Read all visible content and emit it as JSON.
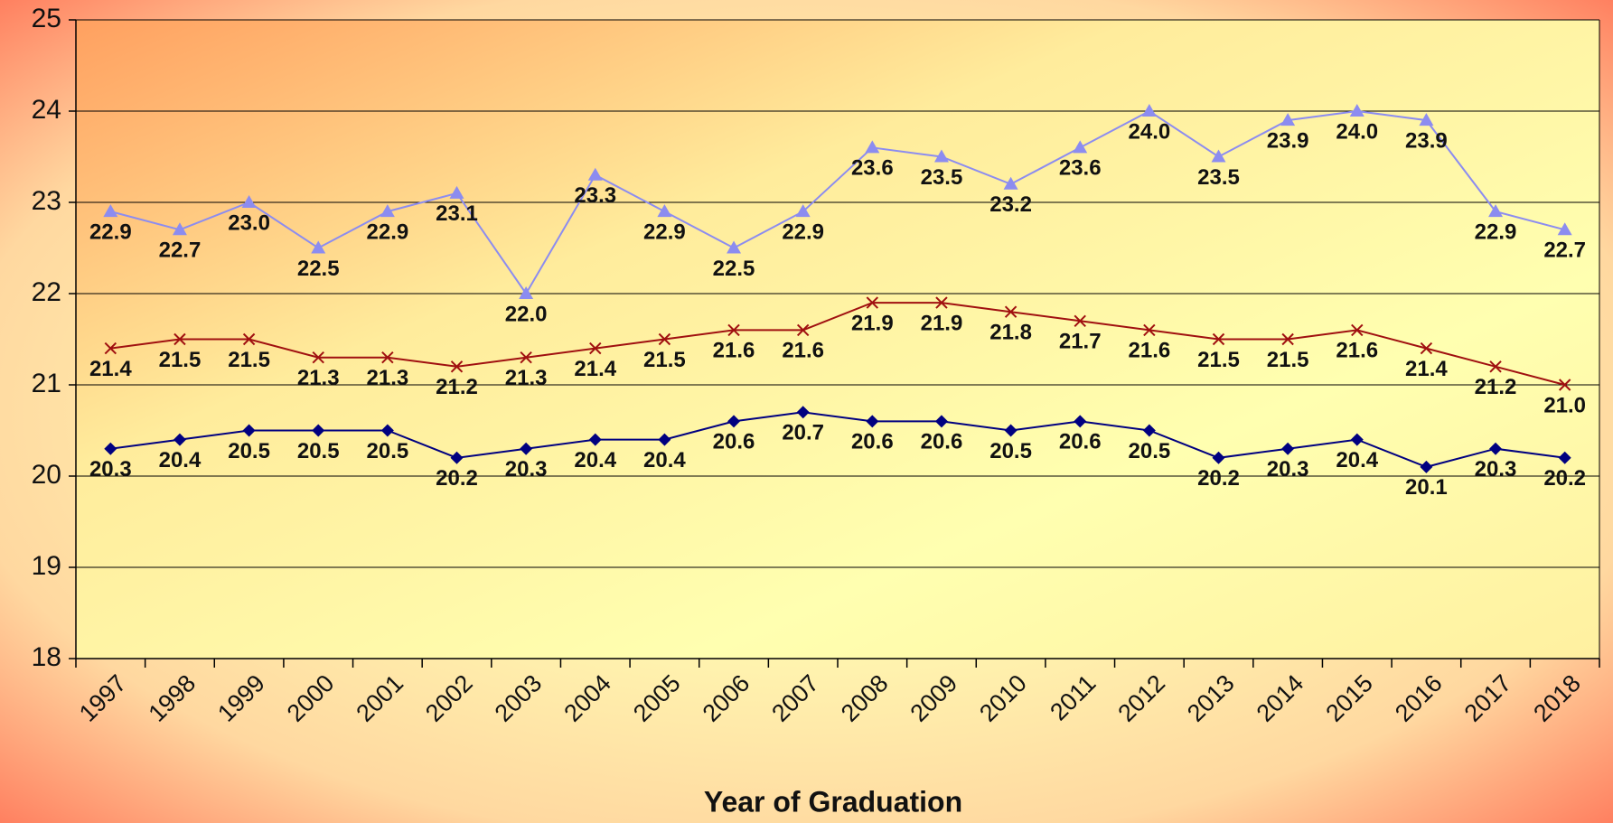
{
  "chart_data": {
    "type": "line",
    "x_label": "Year of Graduation",
    "categories": [
      "1997",
      "1998",
      "1999",
      "2000",
      "2001",
      "2002",
      "2003",
      "2004",
      "2005",
      "2006",
      "2007",
      "2008",
      "2009",
      "2010",
      "2011",
      "2012",
      "2013",
      "2014",
      "2015",
      "2016",
      "2017",
      "2018"
    ],
    "series": [
      {
        "color": "#8c8cf0",
        "marker": "triangle",
        "values": [
          22.9,
          22.7,
          23.0,
          22.5,
          22.9,
          23.1,
          22.0,
          23.3,
          22.9,
          22.5,
          22.9,
          23.6,
          23.5,
          23.2,
          23.6,
          24.0,
          23.5,
          23.9,
          24.0,
          23.9,
          22.9,
          22.7
        ],
        "value_labels": [
          "22.9",
          "22.7",
          "23.0",
          "22.5",
          "22.9",
          "23.1",
          "22.0",
          "23.3",
          "22.9",
          "22.5",
          "22.9",
          "23.6",
          "23.5",
          "23.2",
          "23.6",
          "24.0",
          "23.5",
          "23.9",
          "24.0",
          "23.9",
          "22.9",
          "22.7"
        ]
      },
      {
        "color": "#a01010",
        "marker": "x",
        "values": [
          21.4,
          21.5,
          21.5,
          21.3,
          21.3,
          21.2,
          21.3,
          21.4,
          21.5,
          21.6,
          21.6,
          21.9,
          21.9,
          21.8,
          21.7,
          21.6,
          21.5,
          21.5,
          21.6,
          21.4,
          21.2,
          21.0
        ],
        "value_labels": [
          "21.4",
          "21.5",
          "21.5",
          "21.3",
          "21.3",
          "21.2",
          "21.3",
          "21.4",
          "21.5",
          "21.6",
          "21.6",
          "21.9",
          "21.9",
          "21.8",
          "21.7",
          "21.6",
          "21.5",
          "21.5",
          "21.6",
          "21.4",
          "21.2",
          "21.0"
        ]
      },
      {
        "color": "#000080",
        "marker": "diamond",
        "values": [
          20.3,
          20.4,
          20.5,
          20.5,
          20.5,
          20.2,
          20.3,
          20.4,
          20.4,
          20.6,
          20.7,
          20.6,
          20.6,
          20.5,
          20.6,
          20.5,
          20.2,
          20.3,
          20.4,
          20.1,
          20.3,
          20.2
        ],
        "value_labels": [
          "20.3",
          "20.4",
          "20.5",
          "20.5",
          "20.5",
          "20.2",
          "20.3",
          "20.4",
          "20.4",
          "20.6",
          "20.7",
          "20.6",
          "20.6",
          "20.5",
          "20.6",
          "20.5",
          "20.2",
          "20.3",
          "20.4",
          "20.1",
          "20.3",
          "20.2"
        ]
      }
    ],
    "ylim": [
      18,
      25
    ],
    "yticks": [
      18,
      19,
      20,
      21,
      22,
      23,
      24,
      25
    ],
    "grid": true
  }
}
